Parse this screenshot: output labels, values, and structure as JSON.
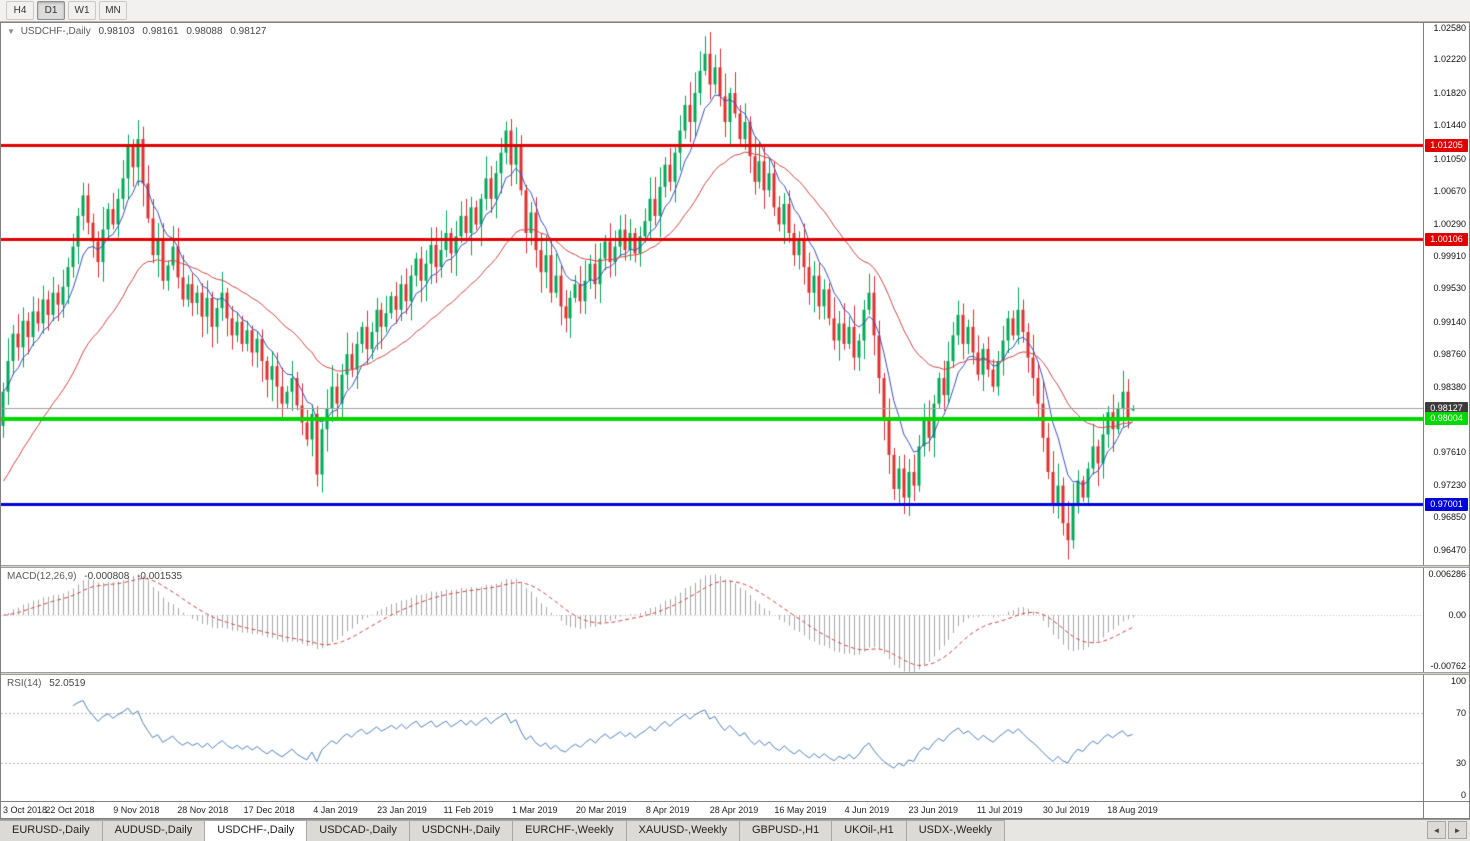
{
  "toolbar": {
    "timeframes": [
      {
        "label": "H4",
        "active": false
      },
      {
        "label": "D1",
        "active": true
      },
      {
        "label": "W1",
        "active": false
      },
      {
        "label": "MN",
        "active": false
      }
    ]
  },
  "chart": {
    "title": {
      "symbol": "USDCHF-,Daily",
      "open": "0.98103",
      "high": "0.98161",
      "low": "0.98088",
      "close": "0.98127"
    },
    "colors": {
      "up": "#00a859",
      "down": "#e03030",
      "ma_fast": "#3a50c0",
      "ma_slow": "#d04545",
      "current_line": "#a0a0a0",
      "current_badge": "#3c3c3c",
      "hist": "#a8a8a8",
      "rsi_line": "#4f81bd"
    },
    "price_axis": {
      "min": 0.9629,
      "max": 1.0264,
      "labels": [
        "1.02580",
        "1.02220",
        "1.01820",
        "1.01440",
        "1.01050",
        "1.00670",
        "1.00290",
        "0.99910",
        "0.99530",
        "0.99140",
        "0.98760",
        "0.98380",
        "0.97610",
        "0.97230",
        "0.96850",
        "0.96470"
      ]
    },
    "hlines": [
      {
        "value": 1.01205,
        "label": "1.01205",
        "color": "#e00000",
        "width": 3
      },
      {
        "value": 1.00106,
        "label": "1.00106",
        "color": "#e00000",
        "width": 3
      },
      {
        "value": 0.98004,
        "label": "0.98004",
        "color": "#00d800",
        "width": 4
      },
      {
        "value": 0.97001,
        "label": "0.97001",
        "color": "#0000dd",
        "width": 3
      }
    ],
    "current_price": {
      "value": 0.98127,
      "label": "0.98127"
    },
    "x_axis": {
      "labels": [
        "3 Oct 2018",
        "22 Oct 2018",
        "9 Nov 2018",
        "28 Nov 2018",
        "17 Dec 2018",
        "4 Jan 2019",
        "23 Jan 2019",
        "11 Feb 2019",
        "1 Mar 2019",
        "20 Mar 2019",
        "8 Apr 2019",
        "28 Apr 2019",
        "16 May 2019",
        "4 Jun 2019",
        "23 Jun 2019",
        "11 Jul 2019",
        "30 Jul 2019",
        "18 Aug 2019"
      ]
    }
  },
  "chart_data": {
    "type": "candlestick",
    "symbol": "USDCHF",
    "timeframe": "Daily",
    "ylim": [
      0.9629,
      1.0264
    ],
    "last_ohlc": {
      "open": 0.98103,
      "high": 0.98161,
      "low": 0.98088,
      "close": 0.98127
    },
    "overlays": [
      {
        "name": "ma-fast",
        "type": "ema",
        "period": 8
      },
      {
        "name": "ma-slow",
        "type": "ema",
        "period": 30
      }
    ],
    "indicators": {
      "macd": {
        "fast": 12,
        "slow": 26,
        "signal": 9,
        "last_main": -0.000808,
        "last_signal": -0.001535
      },
      "rsi": {
        "period": 14,
        "last": 52.0519
      }
    },
    "closes": [
      0.9832,
      0.9868,
      0.99,
      0.9884,
      0.9915,
      0.9896,
      0.9926,
      0.9912,
      0.994,
      0.9922,
      0.9948,
      0.9934,
      0.9955,
      0.9978,
      1.0002,
      1.0038,
      1.0062,
      1.003,
      1.0008,
      0.9984,
      1.0022,
      1.0046,
      1.0028,
      1.0058,
      1.0082,
      1.012,
      1.0095,
      1.0128,
      1.0076,
      1.0035,
      0.9992,
      1.0012,
      0.9962,
      0.998,
      1.0002,
      0.9966,
      0.994,
      0.9958,
      0.9936,
      0.9948,
      0.992,
      0.9942,
      0.9908,
      0.993,
      0.9948,
      0.9918,
      0.9898,
      0.9914,
      0.9888,
      0.9904,
      0.9878,
      0.9894,
      0.9868,
      0.9846,
      0.9862,
      0.9838,
      0.9818,
      0.9832,
      0.9848,
      0.9816,
      0.9796,
      0.9776,
      0.9806,
      0.9735,
      0.9788,
      0.9812,
      0.9838,
      0.9818,
      0.9852,
      0.9876,
      0.9858,
      0.9888,
      0.9908,
      0.9882,
      0.9902,
      0.9928,
      0.9908,
      0.9924,
      0.9944,
      0.9928,
      0.9958,
      0.9938,
      0.9968,
      0.9988,
      0.9962,
      0.9982,
      1.0004,
      0.9978,
      0.9998,
      1.0018,
      0.9994,
      1.0014,
      1.0038,
      1.0018,
      1.0048,
      1.0028,
      1.0058,
      1.0082,
      1.0058,
      1.0088,
      1.0112,
      1.0138,
      1.0098,
      1.0122,
      1.0068,
      1.0018,
      1.0042,
      0.9998,
      0.9972,
      0.9992,
      0.9948,
      0.9968,
      0.9932,
      0.9918,
      0.9942,
      0.9958,
      0.9938,
      0.9962,
      0.9982,
      0.9958,
      0.9988,
      1.0008,
      0.9984,
      1.0002,
      1.0022,
      0.9998,
      1.0018,
      0.9994,
      1.0014,
      1.0032,
      1.0058,
      1.0038,
      1.0072,
      1.0098,
      1.0078,
      1.0112,
      1.0138,
      1.0168,
      1.0148,
      1.0182,
      1.0208,
      1.0228,
      1.0192,
      1.0212,
      1.0178,
      1.0148,
      1.0182,
      1.0158,
      1.0128,
      1.0148,
      1.0108,
      1.0078,
      1.0102,
      1.0068,
      1.0088,
      1.0048,
      1.0028,
      1.0052,
      1.0018,
      0.9992,
      1.0012,
      0.9978,
      0.9948,
      0.9968,
      0.9932,
      0.9952,
      0.9918,
      0.9892,
      0.9912,
      0.9888,
      0.9908,
      0.9872,
      0.9892,
      0.9928,
      0.9948,
      0.9898,
      0.9848,
      0.9798,
      0.9758,
      0.9718,
      0.9742,
      0.9708,
      0.9738,
      0.9722,
      0.9768,
      0.9798,
      0.9778,
      0.9818,
      0.9848,
      0.9828,
      0.9868,
      0.9898,
      0.9922,
      0.9888,
      0.9908,
      0.9878,
      0.9852,
      0.9882,
      0.9858,
      0.9838,
      0.9868,
      0.9892,
      0.9918,
      0.9898,
      0.9928,
      0.9902,
      0.9872,
      0.9848,
      0.9818,
      0.9778,
      0.9738,
      0.9698,
      0.9722,
      0.9678,
      0.9658,
      0.9698,
      0.9728,
      0.9708,
      0.9742,
      0.9768,
      0.9748,
      0.9782,
      0.9808,
      0.9788,
      0.9812,
      0.9832,
      0.9802,
      0.98127
    ]
  },
  "macd_panel": {
    "label": "MACD(12,26,9)",
    "main": "-0.000808",
    "signal": "-0.001535",
    "axis": [
      "0.006286",
      "0.00",
      "-0.00762"
    ],
    "scale_top": 0.0063,
    "scale_bottom": -0.0076
  },
  "rsi_panel": {
    "label": "RSI(14)",
    "value": "52.0519",
    "axis": [
      "100",
      "70",
      "30",
      "0"
    ],
    "levels": [
      70,
      30
    ]
  },
  "tabs": {
    "items": [
      {
        "label": "EURUSD-,Daily",
        "active": false
      },
      {
        "label": "AUDUSD-,Daily",
        "active": false
      },
      {
        "label": "USDCHF-,Daily",
        "active": true
      },
      {
        "label": "USDCAD-,Daily",
        "active": false
      },
      {
        "label": "USDCNH-,Daily",
        "active": false
      },
      {
        "label": "EURCHF-,Weekly",
        "active": false
      },
      {
        "label": "XAUUSD-,Weekly",
        "active": false
      },
      {
        "label": "GBPUSD-,H1",
        "active": false
      },
      {
        "label": "UKOil-,H1",
        "active": false
      },
      {
        "label": "USDX-,Weekly",
        "active": false
      }
    ],
    "scroll_left": "◄",
    "scroll_right": "►"
  }
}
